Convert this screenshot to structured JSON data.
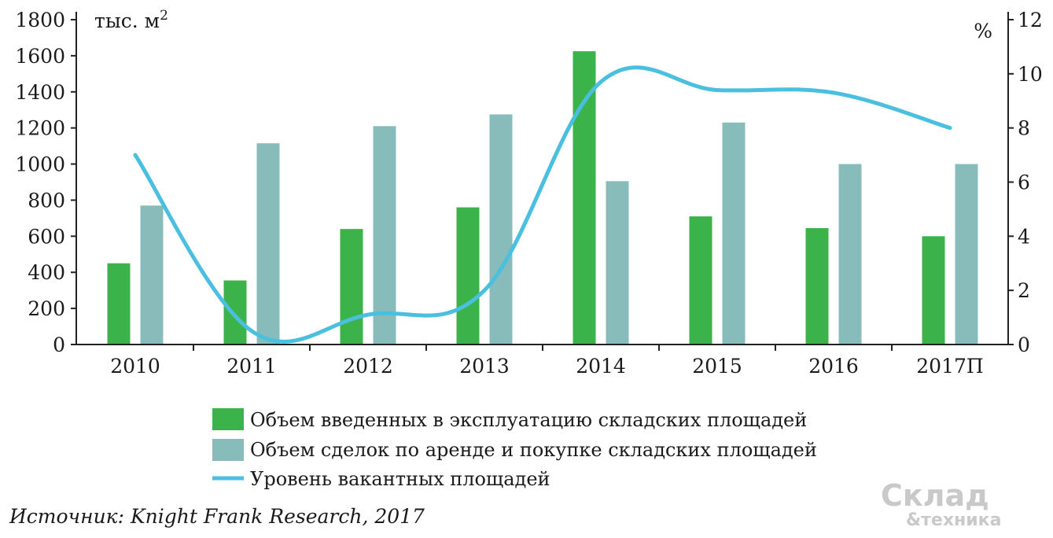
{
  "chart_data": {
    "type": "bar",
    "categories": [
      "2010",
      "2011",
      "2012",
      "2013",
      "2014",
      "2015",
      "2016",
      "2017П"
    ],
    "series": [
      {
        "name": "Объем введенных в эксплуатацию складских площадей",
        "type": "bar",
        "axis": "left",
        "color": "#3cb34a",
        "values": [
          450,
          355,
          640,
          760,
          1625,
          710,
          645,
          600
        ]
      },
      {
        "name": "Объем сделок по аренде и покупке складских площадей",
        "type": "bar",
        "axis": "left",
        "color": "#87bcba",
        "values": [
          770,
          1115,
          1210,
          1275,
          905,
          1230,
          1000,
          1000
        ]
      },
      {
        "name": "Уровень вакантных площадей",
        "type": "line",
        "axis": "right",
        "color": "#4bbfdf",
        "values": [
          7.0,
          0.5,
          1.1,
          2.0,
          9.7,
          9.4,
          9.3,
          8.0
        ]
      }
    ],
    "y_left": {
      "unit": "тыс. м",
      "unit_sup": "2",
      "ylim": [
        0,
        1800
      ],
      "ticks": [
        "0",
        "200",
        "400",
        "600",
        "800",
        "1000",
        "1200",
        "1400",
        "1600",
        "1800"
      ]
    },
    "y_right": {
      "unit": "%",
      "ylim": [
        0,
        12
      ],
      "ticks": [
        "0",
        "2",
        "4",
        "6",
        "8",
        "10",
        "12"
      ]
    },
    "grid": false,
    "legend_position": "bottom-center",
    "source": "Источник: Knight Frank Research, 2017"
  },
  "logo": {
    "line1": "Склад",
    "line2": "&техника"
  }
}
